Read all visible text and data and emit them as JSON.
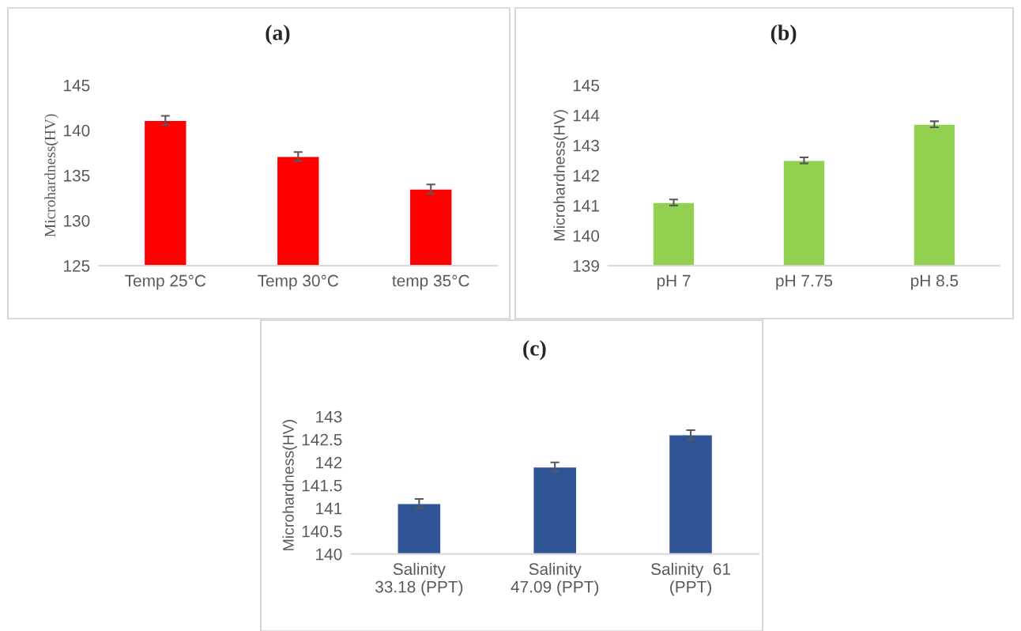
{
  "chart_data": [
    {
      "type": "bar",
      "title": "(a)",
      "ylabel": "Microhardness(HV)",
      "categories": [
        "Temp 25°C",
        "Temp 30°C",
        "temp 35°C"
      ],
      "values": [
        141.1,
        137.1,
        133.5
      ],
      "errors": [
        0.5,
        0.5,
        0.5
      ],
      "color": "#ff0000",
      "ylim": [
        125,
        145
      ],
      "yticks": [
        125,
        130,
        135,
        140,
        145
      ],
      "grid": false,
      "legend": false
    },
    {
      "type": "bar",
      "title": "(b)",
      "ylabel": "Microhardness(HV)",
      "categories": [
        "pH 7",
        "pH 7.75",
        "pH 8.5"
      ],
      "values": [
        141.1,
        142.5,
        143.7
      ],
      "errors": [
        0.1,
        0.1,
        0.1
      ],
      "color": "#92d050",
      "ylim": [
        139,
        145
      ],
      "yticks": [
        139,
        140,
        141,
        142,
        143,
        144,
        145
      ],
      "grid": false,
      "legend": false
    },
    {
      "type": "bar",
      "title": "(c)",
      "ylabel": "Microhardness(HV)",
      "categories": [
        "Salinity\n33.18 (PPT)",
        "Salinity\n47.09 (PPT)",
        "Salinity  61\n(PPT)"
      ],
      "values": [
        141.1,
        141.9,
        142.6
      ],
      "errors": [
        0.1,
        0.1,
        0.1
      ],
      "color": "#2f5597",
      "ylim": [
        140,
        143
      ],
      "yticks": [
        140,
        {
          "value": 140.5,
          "label": "140.5"
        },
        141,
        {
          "value": 141.5,
          "label": "141.5"
        },
        142,
        {
          "value": 142.5,
          "label": "142.5"
        },
        143
      ],
      "grid": false,
      "legend": false
    }
  ]
}
